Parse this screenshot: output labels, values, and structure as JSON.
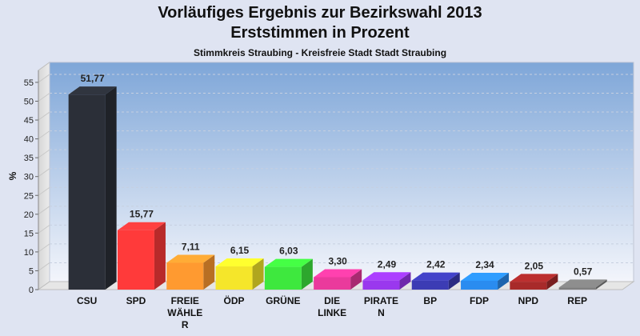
{
  "chart_data": {
    "type": "bar",
    "title": "Vorläufiges Ergebnis zur Bezirkswahl 2013",
    "subtitle": "Erststimmen in Prozent",
    "subsubtitle": "Stimmkreis Straubing - Kreisfreie Stadt Stadt Straubing",
    "ylabel": "%",
    "ylim": [
      0,
      55
    ],
    "yticks": [
      0,
      5,
      10,
      15,
      20,
      25,
      30,
      35,
      40,
      45,
      50,
      55
    ],
    "grid": true,
    "categories": [
      "CSU",
      "SPD",
      "FREIE WÄHLER",
      "ÖDP",
      "GRÜNE",
      "DIE LINKE",
      "PIRATEN",
      "BP",
      "FDP",
      "NPD",
      "REP"
    ],
    "category_lines": [
      [
        "CSU"
      ],
      [
        "SPD"
      ],
      [
        "FREIE",
        "WÄHLE",
        "R"
      ],
      [
        "ÖDP"
      ],
      [
        "GRÜNE"
      ],
      [
        "DIE",
        "LINKE"
      ],
      [
        "PIRATE",
        "N"
      ],
      [
        "BP"
      ],
      [
        "FDP"
      ],
      [
        "NPD"
      ],
      [
        "REP"
      ]
    ],
    "values": [
      51.77,
      15.77,
      7.11,
      6.15,
      6.03,
      3.3,
      2.49,
      2.42,
      2.34,
      2.05,
      0.57
    ],
    "value_labels": [
      "51,77",
      "15,77",
      "7,11",
      "6,15",
      "6,03",
      "3,30",
      "2,49",
      "2,42",
      "2,34",
      "2,05",
      "0,57"
    ],
    "colors": [
      "#2b2f38",
      "#ff3a3a",
      "#ff9a30",
      "#f5e62a",
      "#3ee83e",
      "#ea3a9c",
      "#9a38ee",
      "#3c3cb4",
      "#2a8cf0",
      "#a82a2a",
      "#7f7f7f"
    ]
  }
}
